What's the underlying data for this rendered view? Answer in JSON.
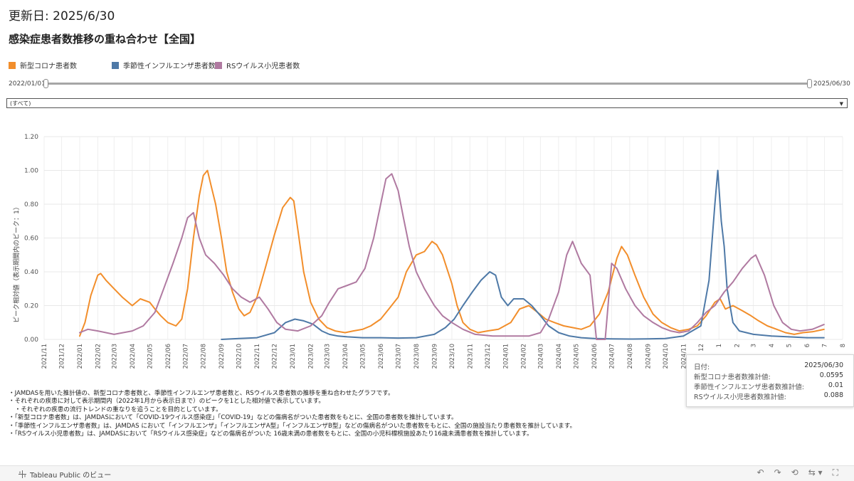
{
  "header": {
    "updated": "更新日: 2025/6/30",
    "title": "感染症患者数推移の重ね合わせ【全国】"
  },
  "legend": [
    {
      "label": "新型コロナ患者数",
      "color": "#f28e2b"
    },
    {
      "label": "季節性インフルエンザ患者数",
      "color": "#4e79a7"
    },
    {
      "label": "RSウイルス小児患者数",
      "color": "#b07aa1"
    }
  ],
  "slider": {
    "start": "2022/01/01",
    "end": "2025/06/30"
  },
  "filter": {
    "value": "(すべて)"
  },
  "chart_data": {
    "type": "line",
    "ylabel": "ピーク相対値（表示期間内のピーク：1）",
    "ylim": [
      0,
      1.2
    ],
    "yticks": [
      "0.00",
      "0.20",
      "0.40",
      "0.60",
      "0.80",
      "1.00",
      "1.20"
    ],
    "xlim": [
      "2021-11",
      "2025-08"
    ],
    "xticks": [
      "2021/11",
      "2021/12",
      "2022/01",
      "2022/02",
      "2022/03",
      "2022/04",
      "2022/05",
      "2022/06",
      "2022/07",
      "2022/08",
      "2022/09",
      "2022/10",
      "2022/11",
      "2022/12",
      "2023/01",
      "2023/02",
      "2023/03",
      "2023/04",
      "2023/05",
      "2023/06",
      "2023/07",
      "2023/08",
      "2023/09",
      "2023/10",
      "2023/11",
      "2023/12",
      "2024/01",
      "2024/02",
      "2024/03",
      "2024/04",
      "2024/05",
      "2024/06",
      "2024/07",
      "2024/08",
      "2024/09",
      "2024/10",
      "2024/11",
      "2024/12",
      "2025/01",
      "2025/02",
      "2025/03",
      "2025/04",
      "2025/05",
      "2025/06",
      "2025/07",
      "2025/08"
    ],
    "xtick_labels": [
      "2021/11",
      "2021/12",
      "2022/01",
      "2022/02",
      "2022/03",
      "2022/04",
      "2022/05",
      "2022/06",
      "2022/07",
      "2022/08",
      "2022/09",
      "2022/10",
      "2022/11",
      "2022/12",
      "2023/01",
      "2023/02",
      "2023/03",
      "2023/04",
      "2023/05",
      "2023/06",
      "2023/07",
      "2023/08",
      "2023/09",
      "2023/10",
      "2023/11",
      "2023/12",
      "2024/01",
      "2024/02",
      "2024/03",
      "2024/04",
      "2024/05",
      "2024/06",
      "2024/07",
      "2024/08",
      "2024/09",
      "2024/10",
      "2024/11",
      "12",
      "1",
      "2",
      "3",
      "4",
      "5",
      "6",
      "7",
      "8"
    ],
    "grid": true,
    "legend_position": "top-left",
    "series": [
      {
        "name": "新型コロナ患者数",
        "color": "#f28e2b",
        "points": [
          [
            "2022-01-01",
            0.02
          ],
          [
            "2022-01-10",
            0.1
          ],
          [
            "2022-01-20",
            0.26
          ],
          [
            "2022-02-01",
            0.38
          ],
          [
            "2022-02-06",
            0.39
          ],
          [
            "2022-02-15",
            0.35
          ],
          [
            "2022-03-01",
            0.3
          ],
          [
            "2022-03-15",
            0.25
          ],
          [
            "2022-04-01",
            0.2
          ],
          [
            "2022-04-15",
            0.24
          ],
          [
            "2022-05-01",
            0.22
          ],
          [
            "2022-05-10",
            0.18
          ],
          [
            "2022-05-20",
            0.14
          ],
          [
            "2022-06-01",
            0.1
          ],
          [
            "2022-06-15",
            0.08
          ],
          [
            "2022-06-25",
            0.12
          ],
          [
            "2022-07-05",
            0.3
          ],
          [
            "2022-07-15",
            0.6
          ],
          [
            "2022-07-25",
            0.85
          ],
          [
            "2022-08-01",
            0.97
          ],
          [
            "2022-08-08",
            1.0
          ],
          [
            "2022-08-15",
            0.9
          ],
          [
            "2022-08-22",
            0.8
          ],
          [
            "2022-09-01",
            0.6
          ],
          [
            "2022-09-10",
            0.4
          ],
          [
            "2022-09-20",
            0.28
          ],
          [
            "2022-10-01",
            0.18
          ],
          [
            "2022-10-10",
            0.14
          ],
          [
            "2022-10-20",
            0.16
          ],
          [
            "2022-11-01",
            0.25
          ],
          [
            "2022-11-15",
            0.42
          ],
          [
            "2022-12-01",
            0.62
          ],
          [
            "2022-12-15",
            0.78
          ],
          [
            "2022-12-28",
            0.84
          ],
          [
            "2023-01-03",
            0.82
          ],
          [
            "2023-01-10",
            0.65
          ],
          [
            "2023-01-20",
            0.4
          ],
          [
            "2023-02-01",
            0.22
          ],
          [
            "2023-02-15",
            0.12
          ],
          [
            "2023-03-01",
            0.07
          ],
          [
            "2023-03-15",
            0.05
          ],
          [
            "2023-04-01",
            0.04
          ],
          [
            "2023-04-15",
            0.05
          ],
          [
            "2023-05-01",
            0.06
          ],
          [
            "2023-05-15",
            0.08
          ],
          [
            "2023-06-01",
            0.12
          ],
          [
            "2023-06-15",
            0.18
          ],
          [
            "2023-07-01",
            0.25
          ],
          [
            "2023-07-15",
            0.4
          ],
          [
            "2023-08-01",
            0.5
          ],
          [
            "2023-08-15",
            0.52
          ],
          [
            "2023-08-28",
            0.58
          ],
          [
            "2023-09-05",
            0.56
          ],
          [
            "2023-09-15",
            0.5
          ],
          [
            "2023-10-01",
            0.33
          ],
          [
            "2023-10-10",
            0.2
          ],
          [
            "2023-10-20",
            0.1
          ],
          [
            "2023-11-01",
            0.06
          ],
          [
            "2023-11-15",
            0.04
          ],
          [
            "2023-12-01",
            0.05
          ],
          [
            "2023-12-20",
            0.06
          ],
          [
            "2024-01-10",
            0.1
          ],
          [
            "2024-01-25",
            0.18
          ],
          [
            "2024-02-10",
            0.2
          ],
          [
            "2024-02-25",
            0.16
          ],
          [
            "2024-03-10",
            0.12
          ],
          [
            "2024-03-25",
            0.1
          ],
          [
            "2024-04-10",
            0.08
          ],
          [
            "2024-04-25",
            0.07
          ],
          [
            "2024-05-10",
            0.06
          ],
          [
            "2024-05-25",
            0.08
          ],
          [
            "2024-06-10",
            0.15
          ],
          [
            "2024-06-25",
            0.28
          ],
          [
            "2024-07-10",
            0.48
          ],
          [
            "2024-07-18",
            0.55
          ],
          [
            "2024-07-28",
            0.5
          ],
          [
            "2024-08-10",
            0.38
          ],
          [
            "2024-08-25",
            0.25
          ],
          [
            "2024-09-10",
            0.15
          ],
          [
            "2024-09-25",
            0.1
          ],
          [
            "2024-10-10",
            0.07
          ],
          [
            "2024-10-25",
            0.05
          ],
          [
            "2024-11-10",
            0.06
          ],
          [
            "2024-11-25",
            0.08
          ],
          [
            "2024-12-10",
            0.14
          ],
          [
            "2024-12-25",
            0.22
          ],
          [
            "2025-01-03",
            0.24
          ],
          [
            "2025-01-12",
            0.18
          ],
          [
            "2025-01-25",
            0.2
          ],
          [
            "2025-02-10",
            0.17
          ],
          [
            "2025-02-25",
            0.14
          ],
          [
            "2025-03-10",
            0.11
          ],
          [
            "2025-03-25",
            0.08
          ],
          [
            "2025-04-10",
            0.06
          ],
          [
            "2025-04-25",
            0.04
          ],
          [
            "2025-05-10",
            0.03
          ],
          [
            "2025-05-25",
            0.04
          ],
          [
            "2025-06-10",
            0.045
          ],
          [
            "2025-06-30",
            0.0595
          ]
        ]
      },
      {
        "name": "季節性インフルエンザ患者数",
        "color": "#4e79a7",
        "points": [
          [
            "2022-09-01",
            0.0
          ],
          [
            "2022-10-01",
            0.005
          ],
          [
            "2022-11-01",
            0.01
          ],
          [
            "2022-12-01",
            0.04
          ],
          [
            "2022-12-20",
            0.1
          ],
          [
            "2023-01-05",
            0.12
          ],
          [
            "2023-01-20",
            0.11
          ],
          [
            "2023-02-05",
            0.09
          ],
          [
            "2023-02-20",
            0.05
          ],
          [
            "2023-03-05",
            0.03
          ],
          [
            "2023-03-20",
            0.02
          ],
          [
            "2023-04-05",
            0.015
          ],
          [
            "2023-05-01",
            0.01
          ],
          [
            "2023-06-01",
            0.01
          ],
          [
            "2023-07-01",
            0.008
          ],
          [
            "2023-08-01",
            0.01
          ],
          [
            "2023-09-01",
            0.03
          ],
          [
            "2023-09-20",
            0.07
          ],
          [
            "2023-10-05",
            0.12
          ],
          [
            "2023-10-20",
            0.2
          ],
          [
            "2023-11-05",
            0.28
          ],
          [
            "2023-11-20",
            0.35
          ],
          [
            "2023-12-05",
            0.4
          ],
          [
            "2023-12-15",
            0.38
          ],
          [
            "2023-12-25",
            0.25
          ],
          [
            "2024-01-05",
            0.2
          ],
          [
            "2024-01-15",
            0.24
          ],
          [
            "2024-02-01",
            0.24
          ],
          [
            "2024-02-15",
            0.2
          ],
          [
            "2024-03-01",
            0.14
          ],
          [
            "2024-03-15",
            0.08
          ],
          [
            "2024-04-01",
            0.04
          ],
          [
            "2024-04-20",
            0.02
          ],
          [
            "2024-05-10",
            0.01
          ],
          [
            "2024-06-01",
            0.005
          ],
          [
            "2024-07-01",
            0.003
          ],
          [
            "2024-08-01",
            0.002
          ],
          [
            "2024-09-01",
            0.003
          ],
          [
            "2024-10-01",
            0.005
          ],
          [
            "2024-11-01",
            0.02
          ],
          [
            "2024-12-01",
            0.08
          ],
          [
            "2024-12-15",
            0.35
          ],
          [
            "2024-12-25",
            0.8
          ],
          [
            "2024-12-30",
            1.0
          ],
          [
            "2025-01-05",
            0.7
          ],
          [
            "2025-01-10",
            0.55
          ],
          [
            "2025-01-15",
            0.3
          ],
          [
            "2025-01-25",
            0.1
          ],
          [
            "2025-02-05",
            0.05
          ],
          [
            "2025-03-01",
            0.03
          ],
          [
            "2025-04-01",
            0.02
          ],
          [
            "2025-05-01",
            0.015
          ],
          [
            "2025-06-01",
            0.01
          ],
          [
            "2025-06-30",
            0.01
          ]
        ]
      },
      {
        "name": "RSウイルス小児患者数",
        "color": "#b07aa1",
        "points": [
          [
            "2022-01-01",
            0.04
          ],
          [
            "2022-01-15",
            0.06
          ],
          [
            "2022-02-01",
            0.05
          ],
          [
            "2022-03-01",
            0.03
          ],
          [
            "2022-04-01",
            0.05
          ],
          [
            "2022-04-20",
            0.08
          ],
          [
            "2022-05-10",
            0.16
          ],
          [
            "2022-05-25",
            0.3
          ],
          [
            "2022-06-10",
            0.45
          ],
          [
            "2022-06-25",
            0.6
          ],
          [
            "2022-07-05",
            0.72
          ],
          [
            "2022-07-15",
            0.75
          ],
          [
            "2022-07-25",
            0.6
          ],
          [
            "2022-08-05",
            0.5
          ],
          [
            "2022-08-20",
            0.45
          ],
          [
            "2022-09-05",
            0.38
          ],
          [
            "2022-09-20",
            0.3
          ],
          [
            "2022-10-05",
            0.25
          ],
          [
            "2022-10-20",
            0.22
          ],
          [
            "2022-11-05",
            0.25
          ],
          [
            "2022-11-20",
            0.18
          ],
          [
            "2022-12-05",
            0.1
          ],
          [
            "2022-12-20",
            0.06
          ],
          [
            "2023-01-10",
            0.05
          ],
          [
            "2023-02-01",
            0.08
          ],
          [
            "2023-02-20",
            0.14
          ],
          [
            "2023-03-05",
            0.22
          ],
          [
            "2023-03-20",
            0.3
          ],
          [
            "2023-04-05",
            0.32
          ],
          [
            "2023-04-20",
            0.34
          ],
          [
            "2023-05-05",
            0.42
          ],
          [
            "2023-05-20",
            0.6
          ],
          [
            "2023-06-01",
            0.8
          ],
          [
            "2023-06-10",
            0.95
          ],
          [
            "2023-06-20",
            0.98
          ],
          [
            "2023-07-01",
            0.88
          ],
          [
            "2023-07-10",
            0.72
          ],
          [
            "2023-07-20",
            0.55
          ],
          [
            "2023-08-01",
            0.4
          ],
          [
            "2023-08-15",
            0.3
          ],
          [
            "2023-09-01",
            0.2
          ],
          [
            "2023-09-15",
            0.14
          ],
          [
            "2023-10-01",
            0.1
          ],
          [
            "2023-10-20",
            0.06
          ],
          [
            "2023-11-10",
            0.03
          ],
          [
            "2023-12-10",
            0.02
          ],
          [
            "2024-01-10",
            0.02
          ],
          [
            "2024-02-10",
            0.02
          ],
          [
            "2024-03-01",
            0.04
          ],
          [
            "2024-03-15",
            0.12
          ],
          [
            "2024-04-01",
            0.28
          ],
          [
            "2024-04-15",
            0.5
          ],
          [
            "2024-04-25",
            0.58
          ],
          [
            "2024-05-10",
            0.45
          ],
          [
            "2024-05-25",
            0.38
          ],
          [
            "2024-06-05",
            0.0
          ],
          [
            "2024-06-20",
            0.0
          ],
          [
            "2024-07-01",
            0.45
          ],
          [
            "2024-07-10",
            0.42
          ],
          [
            "2024-07-25",
            0.3
          ],
          [
            "2024-08-10",
            0.2
          ],
          [
            "2024-08-25",
            0.14
          ],
          [
            "2024-09-10",
            0.1
          ],
          [
            "2024-09-25",
            0.07
          ],
          [
            "2024-10-10",
            0.05
          ],
          [
            "2024-10-25",
            0.04
          ],
          [
            "2024-11-10",
            0.05
          ],
          [
            "2024-11-25",
            0.1
          ],
          [
            "2024-12-10",
            0.16
          ],
          [
            "2024-12-25",
            0.2
          ],
          [
            "2025-01-10",
            0.28
          ],
          [
            "2025-01-25",
            0.34
          ],
          [
            "2025-02-10",
            0.42
          ],
          [
            "2025-02-25",
            0.48
          ],
          [
            "2025-03-05",
            0.5
          ],
          [
            "2025-03-20",
            0.38
          ],
          [
            "2025-04-05",
            0.2
          ],
          [
            "2025-04-20",
            0.1
          ],
          [
            "2025-05-05",
            0.06
          ],
          [
            "2025-05-20",
            0.05
          ],
          [
            "2025-06-10",
            0.06
          ],
          [
            "2025-06-30",
            0.088
          ]
        ]
      }
    ]
  },
  "tooltip": {
    "date_label": "日付:",
    "date_value": "2025/06/30",
    "covid_label": "新型コロナ患者数推計値:",
    "covid_value": "0.0595",
    "flu_label": "季節性インフルエンザ患者数推計値:",
    "flu_value": "0.01",
    "rsv_label": "RSウイルス小児患者数推計値:",
    "rsv_value": "0.088"
  },
  "notes": [
    "・JAMDASを用いた推計値の、新型コロナ患者数と、季節性インフルエンザ患者数と、RSウイルス患者数の推移を重ね合わせたグラフです。",
    "・それぞれの疾患に対して表示期間内（2022年1月から表示日まで）のピークを1とした相対値で表示しています。",
    "　・それぞれの疾患の流行トレンドの重なりを追うことを目的としています。",
    "・「新型コロナ患者数」は、JAMDASにおいて「COVID-19ウイルス感染症」「COVID-19」などの傷病名がついた患者数をもとに、全国の患者数を推計しています。",
    "・「季節性インフルエンザ患者数」は、JAMDAS において「インフルエンザ」「インフルエンザA型」「インフルエンザB型」などの傷病名がついた患者数をもとに、全国の施設当たり患者数を推計しています。",
    "・「RSウイルス小児患者数」は、JAMDASにおいて「RSウイルス感染症」などの傷病名がついた 16歳未満の患者数をもとに、全国の小児科標榜施設あたり16歳未満患者数を推計しています。"
  ],
  "footer": {
    "brand": "Tableau Public のビュー",
    "icons": [
      "undo-icon",
      "redo-icon",
      "revert-icon",
      "share-icon",
      "fullscreen-icon"
    ]
  }
}
